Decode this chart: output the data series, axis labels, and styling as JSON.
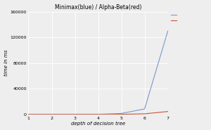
{
  "title": "Minimax(blue) / Alpha-Beta(red)",
  "xlabel": "depth of decision tree",
  "ylabel": "time in ms",
  "x": [
    1,
    2,
    3,
    4,
    5,
    6,
    7
  ],
  "minimax": [
    0,
    0,
    2,
    15,
    1500,
    8500,
    130000
  ],
  "alphabeta": [
    0,
    0,
    1,
    5,
    200,
    900,
    4500
  ],
  "minimax_color": "#7799cc",
  "alphabeta_color": "#cc5533",
  "ylim": [
    0,
    160000
  ],
  "yticks": [
    0,
    40000,
    80000,
    120000,
    160000
  ],
  "xticks": [
    1,
    2,
    3,
    4,
    5,
    6,
    7
  ],
  "background_color": "#eeeeee",
  "grid_color": "#ffffff",
  "title_fontsize": 5.5,
  "label_fontsize": 5.0,
  "tick_fontsize": 4.5,
  "legend_fontsize": 4.5,
  "linewidth": 0.8
}
